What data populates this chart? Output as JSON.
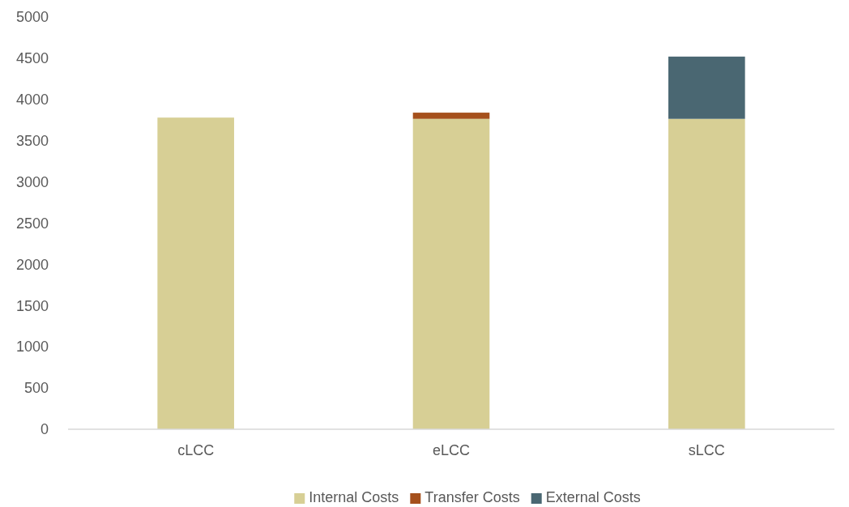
{
  "chart_data": {
    "type": "bar",
    "stacked": true,
    "categories": [
      "cLCC",
      "eLCC",
      "sLCC"
    ],
    "series": [
      {
        "name": "Internal Costs",
        "color": "#d7cf95",
        "values": [
          3780,
          3765,
          3765
        ]
      },
      {
        "name": "Transfer Costs",
        "color": "#a5501c",
        "values": [
          null,
          75,
          null
        ]
      },
      {
        "name": "External Costs",
        "color": "#4a6772",
        "values": [
          null,
          null,
          755
        ]
      }
    ],
    "ylim": [
      0,
      5000
    ],
    "yticks": [
      0,
      500,
      1000,
      1500,
      2000,
      2500,
      3000,
      3500,
      4000,
      4500,
      5000
    ],
    "grid": false,
    "legend": "bottom"
  }
}
